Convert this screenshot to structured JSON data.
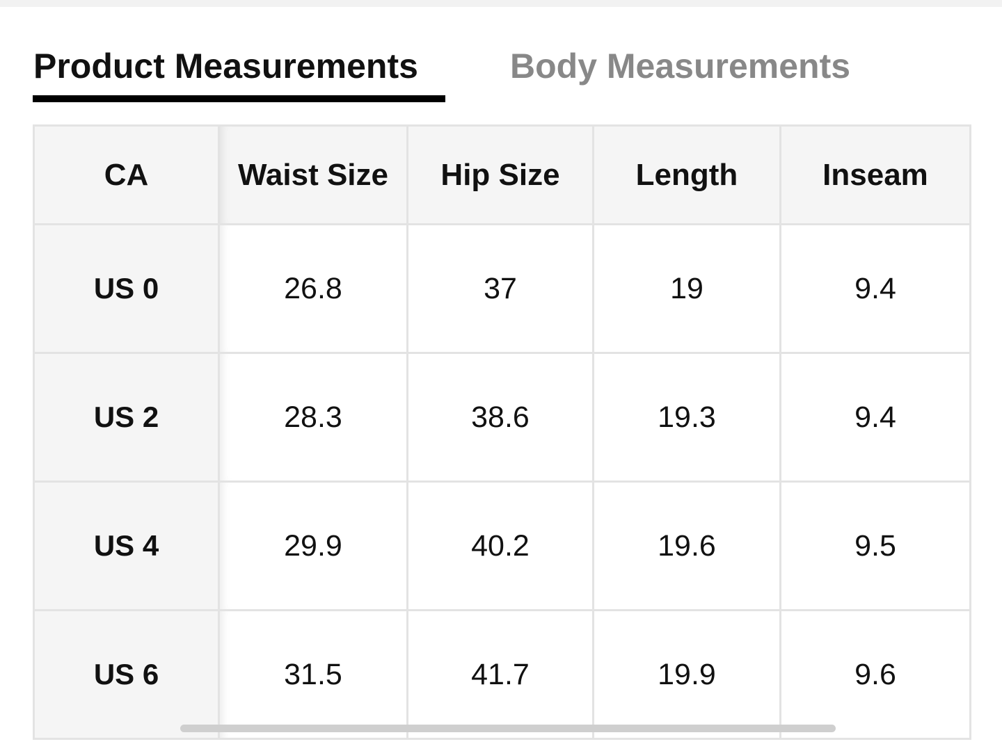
{
  "tabs": [
    "Product Measurements",
    "Body Measurements"
  ],
  "table": {
    "header": [
      "CA",
      "Waist Size",
      "Hip Size",
      "Length",
      "Inseam"
    ],
    "rows": [
      [
        "US 0",
        "26.8",
        "37",
        "19",
        "9.4"
      ],
      [
        "US 2",
        "28.3",
        "38.6",
        "19.3",
        "9.4"
      ],
      [
        "US 4",
        "29.9",
        "40.2",
        "19.6",
        "9.5"
      ],
      [
        "US 6",
        "31.5",
        "41.7",
        "19.9",
        "9.6"
      ]
    ]
  }
}
